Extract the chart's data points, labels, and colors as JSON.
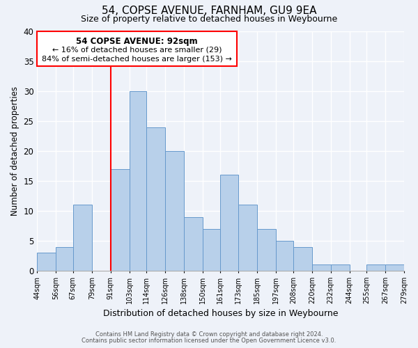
{
  "title": "54, COPSE AVENUE, FARNHAM, GU9 9EA",
  "subtitle": "Size of property relative to detached houses in Weybourne",
  "xlabel": "Distribution of detached houses by size in Weybourne",
  "ylabel": "Number of detached properties",
  "bin_edges": [
    44,
    56,
    67,
    79,
    91,
    103,
    114,
    126,
    138,
    150,
    161,
    173,
    185,
    197,
    208,
    220,
    232,
    244,
    255,
    267,
    279
  ],
  "bar_heights": [
    3,
    4,
    11,
    0,
    17,
    30,
    24,
    20,
    9,
    7,
    16,
    11,
    7,
    5,
    4,
    1,
    1,
    0,
    1,
    1
  ],
  "bar_color": "#b8d0ea",
  "bar_edgecolor": "#6699cc",
  "redline_x": 91,
  "ylim": [
    0,
    40
  ],
  "yticks": [
    0,
    5,
    10,
    15,
    20,
    25,
    30,
    35,
    40
  ],
  "annotation_title": "54 COPSE AVENUE: 92sqm",
  "annotation_line1": "← 16% of detached houses are smaller (29)",
  "annotation_line2": "84% of semi-detached houses are larger (153) →",
  "footer_line1": "Contains HM Land Registry data © Crown copyright and database right 2024.",
  "footer_line2": "Contains public sector information licensed under the Open Government Licence v3.0.",
  "background_color": "#eef2f9",
  "plot_background": "#eef2f9",
  "grid_color": "white",
  "title_fontsize": 11,
  "subtitle_fontsize": 9
}
